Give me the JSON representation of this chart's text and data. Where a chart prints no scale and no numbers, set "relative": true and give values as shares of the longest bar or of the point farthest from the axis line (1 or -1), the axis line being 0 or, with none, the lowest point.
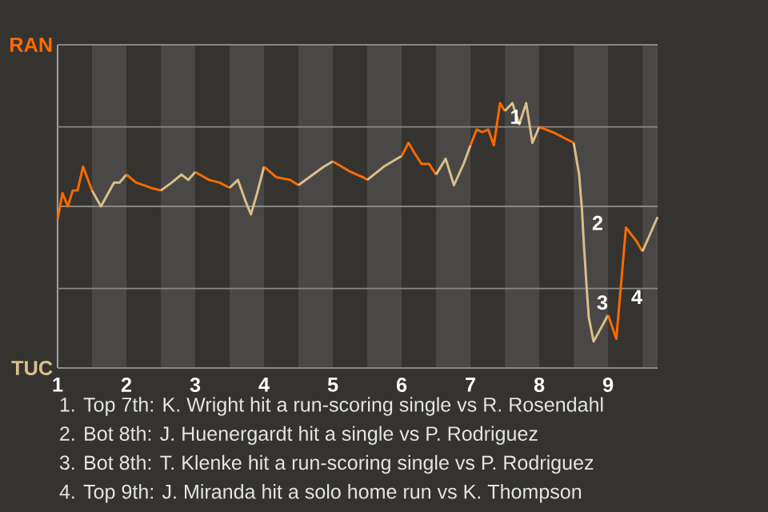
{
  "chart_data": {
    "type": "line",
    "relative": true,
    "xlim": [
      1,
      9.72
    ],
    "xticks": [
      {
        "value": 1,
        "label": "1"
      },
      {
        "value": 2,
        "label": "2"
      },
      {
        "value": 3,
        "label": "3"
      },
      {
        "value": 4,
        "label": "4"
      },
      {
        "value": 5,
        "label": "5"
      },
      {
        "value": 6,
        "label": "6"
      },
      {
        "value": 7,
        "label": "7"
      },
      {
        "value": 8,
        "label": "8"
      },
      {
        "value": 9,
        "label": "9"
      }
    ],
    "line_style": "solid",
    "ref_lines": [
      {
        "axis": "y",
        "value": 1.22,
        "label": "RAN",
        "color": "#8a8886"
      },
      {
        "axis": "y",
        "value": 0.91,
        "color": "#8a8886"
      },
      {
        "axis": "y",
        "value": 0.61,
        "color": "#8a8886"
      },
      {
        "axis": "y",
        "value": 0.3,
        "color": "#8a8886"
      },
      {
        "axis": "y",
        "value": 0,
        "label": "TUC",
        "color": "#8a8886"
      }
    ],
    "bands": [
      {
        "axis": "x",
        "from": 1.5,
        "to": 2,
        "color": "#4a4846"
      },
      {
        "axis": "x",
        "from": 2.5,
        "to": 3,
        "color": "#4a4846"
      },
      {
        "axis": "x",
        "from": 3.5,
        "to": 4,
        "color": "#4a4846"
      },
      {
        "axis": "x",
        "from": 4.5,
        "to": 5,
        "color": "#4a4846"
      },
      {
        "axis": "x",
        "from": 5.5,
        "to": 6,
        "color": "#4a4846"
      },
      {
        "axis": "x",
        "from": 6.5,
        "to": 7,
        "color": "#4a4846"
      },
      {
        "axis": "x",
        "from": 7.5,
        "to": 8,
        "color": "#4a4846"
      },
      {
        "axis": "x",
        "from": 8.5,
        "to": 9,
        "color": "#4a4846"
      },
      {
        "axis": "x",
        "from": 9.5,
        "to": 9.72,
        "color": "#4a4846"
      }
    ],
    "series": [
      {
        "color": "#ff6a00",
        "x": [
          1,
          1.07,
          1.15,
          1.22,
          1.29,
          1.37,
          1.5
        ],
        "values": [
          0.56,
          0.66,
          0.61,
          0.67,
          0.67,
          0.76,
          0.67
        ]
      },
      {
        "color": "#d9c08a",
        "x": [
          1.5,
          1.63,
          1.82,
          1.9,
          2
        ],
        "values": [
          0.67,
          0.61,
          0.7,
          0.7,
          0.73
        ]
      },
      {
        "color": "#ff6a00",
        "x": [
          2,
          2.14,
          2.36,
          2.5
        ],
        "values": [
          0.73,
          0.7,
          0.68,
          0.67
        ]
      },
      {
        "color": "#d9c08a",
        "x": [
          2.5,
          2.66,
          2.8,
          2.9,
          3
        ],
        "values": [
          0.67,
          0.7,
          0.73,
          0.71,
          0.74
        ]
      },
      {
        "color": "#ff6a00",
        "x": [
          3,
          3.2,
          3.35,
          3.5
        ],
        "values": [
          0.74,
          0.71,
          0.7,
          0.68
        ]
      },
      {
        "color": "#d9c08a",
        "x": [
          3.5,
          3.62,
          3.73,
          3.81,
          3.9,
          4
        ],
        "values": [
          0.68,
          0.71,
          0.63,
          0.58,
          0.66,
          0.76
        ]
      },
      {
        "color": "#ff6a00",
        "x": [
          4,
          4.18,
          4.38,
          4.5
        ],
        "values": [
          0.76,
          0.72,
          0.71,
          0.69
        ]
      },
      {
        "color": "#d9c08a",
        "x": [
          4.5,
          4.71,
          4.87,
          5
        ],
        "values": [
          0.69,
          0.73,
          0.76,
          0.78
        ]
      },
      {
        "color": "#ff6a00",
        "x": [
          5,
          5.26,
          5.44,
          5.5
        ],
        "values": [
          0.78,
          0.74,
          0.72,
          0.71
        ]
      },
      {
        "color": "#d9c08a",
        "x": [
          5.5,
          5.74,
          6
        ],
        "values": [
          0.71,
          0.76,
          0.8
        ]
      },
      {
        "color": "#ff6a00",
        "x": [
          6,
          6.1,
          6.19,
          6.29,
          6.4,
          6.5
        ],
        "values": [
          0.8,
          0.85,
          0.81,
          0.77,
          0.77,
          0.73
        ]
      },
      {
        "color": "#d9c08a",
        "x": [
          6.5,
          6.64,
          6.76,
          6.9,
          7
        ],
        "values": [
          0.73,
          0.79,
          0.69,
          0.77,
          0.84
        ]
      },
      {
        "color": "#ff6a00",
        "x": [
          7,
          7.09,
          7.17,
          7.26,
          7.34,
          7.43,
          7.5
        ],
        "values": [
          0.84,
          0.9,
          0.89,
          0.9,
          0.84,
          1.0,
          0.97
        ]
      },
      {
        "color": "#d9c08a",
        "x": [
          7.5,
          7.61,
          7.71,
          7.81,
          7.9,
          8
        ],
        "values": [
          0.97,
          1.0,
          0.92,
          1.0,
          0.85,
          0.91
        ]
      },
      {
        "color": "#ff6a00",
        "x": [
          8,
          8.2,
          8.5
        ],
        "values": [
          0.91,
          0.89,
          0.85
        ]
      },
      {
        "color": "#d9c08a",
        "x": [
          8.5,
          8.58,
          8.62,
          8.65,
          8.69,
          8.72,
          8.79,
          9
        ],
        "values": [
          0.85,
          0.73,
          0.6,
          0.46,
          0.3,
          0.19,
          0.1,
          0.2
        ]
      },
      {
        "color": "#ff6a00",
        "x": [
          9,
          9.12,
          9.19,
          9.26,
          9.41,
          9.5
        ],
        "values": [
          0.2,
          0.11,
          0.32,
          0.53,
          0.48,
          0.44
        ]
      },
      {
        "color": "#d9c08a",
        "x": [
          9.5,
          9.72
        ],
        "values": [
          0.44,
          0.57
        ]
      }
    ],
    "annotations": [
      {
        "text": "1",
        "x": 7.43,
        "y": 1.0
      },
      {
        "text": "2",
        "x": 8.62,
        "y": 0.6
      },
      {
        "text": "3",
        "x": 8.69,
        "y": 0.3
      },
      {
        "text": "4",
        "x": 9.19,
        "y": 0.32
      },
      "1. Top 7th: K. Wright hit a run-scoring single vs R. Rosendahl",
      "2. Bot 8th: J. Huenergardt hit a single vs P. Rodriguez",
      "3. Bot 8th: T. Klenke hit a run-scoring single vs P. Rodriguez",
      "4. Top 9th: J. Miranda hit a solo home run vs K. Thompson"
    ]
  }
}
